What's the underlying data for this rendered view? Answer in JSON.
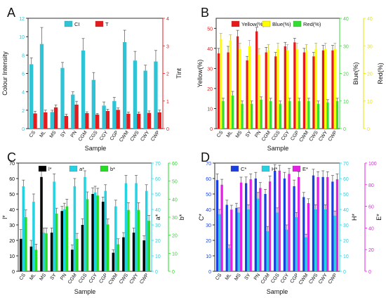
{
  "figure": {
    "panel_letters": [
      "A",
      "B",
      "C",
      "D"
    ]
  },
  "chart_data": [
    {
      "panel": "A",
      "type": "bar",
      "categories": [
        "CS",
        "ML",
        "MS",
        "SY",
        "PN",
        "CGM",
        "CGS",
        "CGY",
        "CGP",
        "CWM",
        "CWS",
        "CWY",
        "CWP"
      ],
      "xlabel": "Sample",
      "legend": [
        "CI",
        "T"
      ],
      "legend_position": "top-center",
      "series": [
        {
          "name": "CI",
          "axis": "left",
          "color": "#2ec4d6",
          "values": [
            7.0,
            9.2,
            1.8,
            6.6,
            3.7,
            8.5,
            5.3,
            2.5,
            3.0,
            9.4,
            7.4,
            6.3,
            7.3
          ],
          "errors": [
            0.7,
            1.8,
            0.2,
            0.6,
            0.3,
            1.3,
            0.8,
            0.4,
            0.4,
            1.3,
            1.0,
            0.6,
            1.2
          ]
        },
        {
          "name": "T",
          "axis": "right",
          "color": "#e41a1c",
          "values": [
            0.55,
            0.59,
            0.77,
            0.46,
            0.87,
            0.56,
            0.51,
            0.64,
            0.68,
            0.54,
            0.54,
            0.57,
            0.59
          ],
          "errors": [
            0.08,
            0.08,
            0.09,
            0.06,
            0.12,
            0.05,
            0.04,
            0.06,
            0.07,
            0.06,
            0.06,
            0.07,
            0.08
          ]
        }
      ],
      "left_axis": {
        "label": "Colour Intensity",
        "ylim": [
          0,
          12
        ],
        "ticks": [
          0,
          2,
          4,
          6,
          8,
          10,
          12
        ],
        "color": "#2ec4d6"
      },
      "right_axis": {
        "label": "Tint",
        "ylim": [
          0,
          4
        ],
        "ticks": [
          0,
          1,
          2,
          3,
          4
        ],
        "color": "#e41a1c"
      }
    },
    {
      "panel": "B",
      "type": "bar",
      "categories": [
        "CS",
        "ML",
        "MS",
        "SY",
        "PN",
        "CGM",
        "CGS",
        "CGY",
        "CGP",
        "CWM",
        "CWS",
        "CWY",
        "CWP"
      ],
      "xlabel": "Sample",
      "legend": [
        "Yellow(%)",
        "Blue(%)",
        "Red(%)"
      ],
      "legend_position": "top-center",
      "series": [
        {
          "name": "Yellow(%)",
          "axis": "left",
          "color": "#e41a1c",
          "values": [
            37.5,
            38,
            46,
            34,
            48.5,
            38,
            36,
            41,
            43,
            38,
            36,
            39,
            39
          ],
          "errors": [
            2.5,
            3,
            3,
            2,
            2,
            2.5,
            2,
            2,
            2,
            2,
            2,
            2.5,
            2.5
          ]
        },
        {
          "name": "Blue(%)",
          "axis": "right2",
          "color": "#ffff00",
          "values": [
            32.5,
            32,
            29,
            30,
            27,
            28.5,
            29,
            28.5,
            29,
            28.5,
            29,
            29,
            29
          ],
          "errors": [
            2,
            2,
            2,
            2,
            2,
            2,
            2,
            2,
            2,
            2,
            2,
            2,
            2
          ]
        },
        {
          "name": "Red(%)",
          "axis": "right1",
          "color": "#33dd33",
          "values": [
            10,
            12,
            9,
            9,
            10.5,
            10,
            9,
            10,
            10,
            10,
            9,
            9.5,
            10
          ],
          "errors": [
            1,
            1.5,
            1,
            1,
            1,
            1,
            1,
            1,
            1,
            1,
            1,
            1,
            1
          ]
        }
      ],
      "left_axis": {
        "label": "Yellow(%)",
        "ylim": [
          0,
          55
        ],
        "ticks": [
          0,
          10,
          20,
          30,
          40,
          50
        ],
        "color": "#e41a1c"
      },
      "right1_axis": {
        "label": "Blue(%)",
        "ylim": [
          0,
          40
        ],
        "ticks": [
          0,
          10,
          20,
          30,
          40
        ],
        "color": "#33dd33"
      },
      "right2_axis": {
        "label": "Red(%)",
        "ylim": [
          0,
          40
        ],
        "ticks": [
          0,
          10,
          20,
          30,
          40
        ],
        "color": "#e6e600"
      }
    },
    {
      "panel": "C",
      "type": "bar",
      "categories": [
        "CS",
        "ML",
        "MS",
        "SY",
        "PN",
        "CGM",
        "CGS",
        "CGY",
        "CGP",
        "CWM",
        "CWS",
        "CWY",
        "CWP"
      ],
      "xlabel": "Sample",
      "legend": [
        "l*",
        "a*",
        "b*"
      ],
      "legend_position": "top-center",
      "series": [
        {
          "name": "l*",
          "axis": "left",
          "color": "#000000",
          "values": [
            21,
            16,
            61,
            25,
            39,
            14,
            30,
            50,
            45,
            12,
            22,
            25,
            20
          ],
          "errors": [
            6,
            4,
            4,
            3,
            3,
            3,
            4,
            4,
            3,
            2,
            3,
            3,
            3
          ]
        },
        {
          "name": "a*",
          "axis": "right1",
          "color": "#22d3e3",
          "values": [
            55,
            45,
            25,
            58,
            40,
            55,
            61,
            51,
            52,
            42,
            57,
            57,
            52
          ],
          "errors": [
            4,
            5,
            3,
            5,
            4,
            5,
            4,
            4,
            4,
            4,
            5,
            5,
            4
          ]
        },
        {
          "name": "b*",
          "axis": "right2",
          "color": "#22dd22",
          "values": [
            30,
            12,
            21,
            32,
            36,
            18,
            40,
            42,
            26,
            15,
            34,
            34,
            28
          ],
          "errors": [
            4,
            3,
            3,
            3,
            4,
            3,
            4,
            4,
            3,
            3,
            4,
            4,
            3
          ]
        }
      ],
      "left_axis": {
        "label": "l*",
        "ylim": [
          0,
          70
        ],
        "ticks": [
          0,
          10,
          20,
          30,
          40,
          50,
          60,
          70
        ],
        "color": "#000000"
      },
      "right1_axis": {
        "label": "a*",
        "ylim": [
          0,
          70
        ],
        "ticks": [
          0,
          10,
          20,
          30,
          40,
          50,
          60,
          70
        ],
        "color": "#22d3e3"
      },
      "right2_axis": {
        "label": "b*",
        "ylim": [
          0,
          60
        ],
        "ticks": [
          0,
          10,
          20,
          30,
          40,
          50,
          60
        ],
        "color": "#22dd22"
      }
    },
    {
      "panel": "D",
      "type": "bar",
      "categories": [
        "CS",
        "ML",
        "MS",
        "SY",
        "PN",
        "CGM",
        "CGS",
        "CGY",
        "CGP",
        "CWM",
        "CWS",
        "CWY",
        "CWP"
      ],
      "xlabel": "Sample",
      "legend": [
        "C*",
        "H*",
        "E*"
      ],
      "legend_position": "top-center",
      "series": [
        {
          "name": "C*",
          "axis": "left",
          "color": "#1a3fe0",
          "values": [
            59,
            43,
            41,
            57,
            60,
            50,
            65,
            60,
            55,
            48,
            62,
            61,
            58
          ],
          "errors": [
            4,
            3,
            3,
            4,
            4,
            3,
            4,
            4,
            4,
            3,
            4,
            4,
            4
          ]
        },
        {
          "name": "H*",
          "axis": "right1",
          "color": "#22d3e3",
          "values": [
            37,
            15,
            38,
            40,
            47,
            26,
            38,
            27,
            35,
            22,
            40,
            40,
            36
          ],
          "errors": [
            3,
            2,
            3,
            3,
            4,
            3,
            3,
            3,
            3,
            2,
            3,
            3,
            3
          ]
        },
        {
          "name": "E*",
          "axis": "right2",
          "color": "#e61fe6",
          "values": [
            80,
            57,
            82,
            85,
            77,
            83,
            93,
            90,
            87,
            63,
            87,
            87,
            85
          ],
          "errors": [
            5,
            4,
            5,
            5,
            5,
            5,
            5,
            5,
            5,
            4,
            5,
            5,
            5
          ]
        }
      ],
      "left_axis": {
        "label": "C*",
        "ylim": [
          0,
          70
        ],
        "ticks": [
          0,
          10,
          20,
          30,
          40,
          50,
          60,
          70
        ],
        "color": "#1a3fe0"
      },
      "right1_axis": {
        "label": "H*",
        "ylim": [
          0,
          70
        ],
        "ticks": [
          0,
          10,
          20,
          30,
          40,
          50,
          60,
          70
        ],
        "color": "#22d3e3"
      },
      "right2_axis": {
        "label": "E*",
        "ylim": [
          0,
          100
        ],
        "ticks": [
          0,
          20,
          40,
          60,
          80,
          100
        ],
        "color": "#e61fe6"
      }
    }
  ]
}
